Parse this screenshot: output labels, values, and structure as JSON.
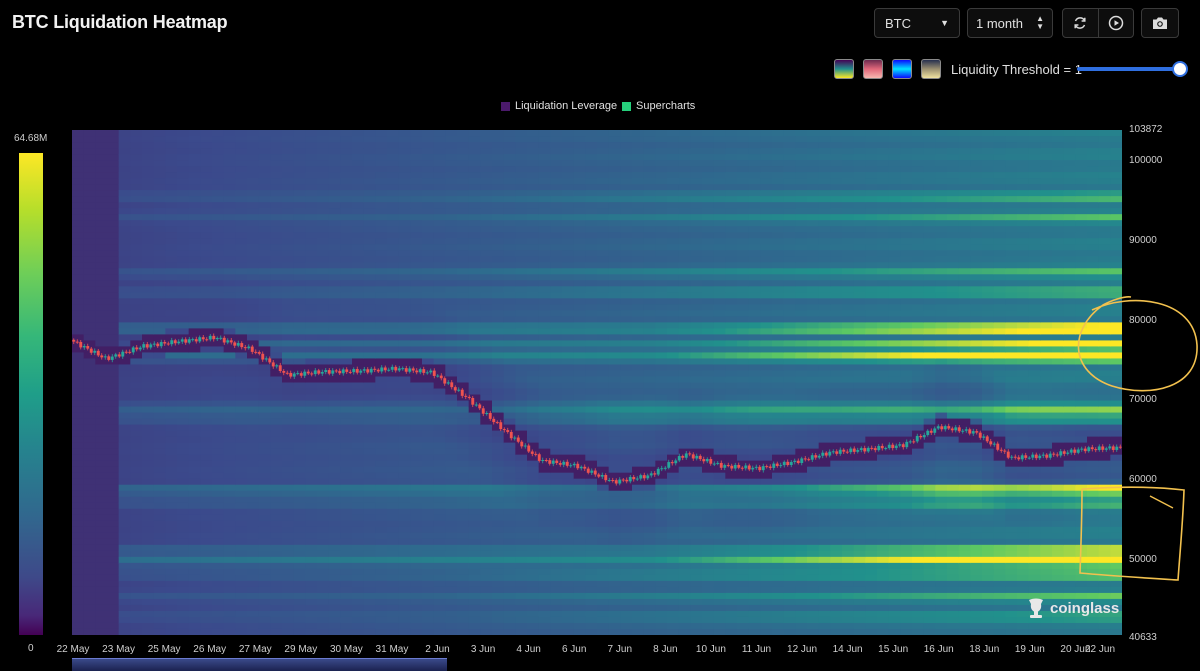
{
  "header": {
    "title": "BTC Liquidation Heatmap",
    "symbol_select": "BTC",
    "range_select": "1 month",
    "threshold_label": "Liquidity Threshold = 1"
  },
  "colors": {
    "background": "#000000",
    "heat_low": "#44125a",
    "heat_mid": "#25838e",
    "heat_high": "#fde725",
    "candle_up": "#26a69a",
    "candle_down": "#ef5350",
    "slider": "#2f6fe0",
    "annotation": "#f2c14e"
  },
  "palette_swatches": [
    [
      "#440154",
      "#21908d",
      "#fde725"
    ],
    [
      "#6b2a4e",
      "#e0677a",
      "#f7b7b0"
    ],
    [
      "#0a0aff",
      "#00e5ff",
      "#ffffff"
    ],
    [
      "#27304f",
      "#9a8f70",
      "#f0e2a0"
    ]
  ],
  "legend": {
    "items": [
      {
        "label": "Liquidation Leverage",
        "color": "#4b1a6b"
      },
      {
        "label": "Supercharts",
        "color": "#26d07c"
      }
    ]
  },
  "color_scale": {
    "max_label": "64.68M",
    "min_label": "0"
  },
  "watermark": "coinglass",
  "chart_data": {
    "type": "heatmap",
    "title": "BTC Liquidation Heatmap",
    "ylim": [
      40633,
      103872
    ],
    "y_ticks": [
      "103872",
      "100000",
      "90000",
      "80000",
      "70000",
      "60000",
      "50000",
      "40633"
    ],
    "x_ticks": [
      "22 May",
      "23 May",
      "25 May",
      "26 May",
      "27 May",
      "29 May",
      "30 May",
      "31 May",
      "2 Jun",
      "3 Jun",
      "4 Jun",
      "6 Jun",
      "7 Jun",
      "8 Jun",
      "10 Jun",
      "11 Jun",
      "12 Jun",
      "14 Jun",
      "15 Jun",
      "16 Jun",
      "18 Jun",
      "19 Jun",
      "20 Jun",
      "22 Jun"
    ],
    "value_scale": {
      "min": 0,
      "max": 64680000,
      "unit": "USD"
    },
    "price_path": [
      [
        0,
        77600
      ],
      [
        1,
        75200
      ],
      [
        2,
        76800
      ],
      [
        3,
        77400
      ],
      [
        4,
        77900
      ],
      [
        5,
        76400
      ],
      [
        6,
        73200
      ],
      [
        7,
        73600
      ],
      [
        8,
        73700
      ],
      [
        9,
        74000
      ],
      [
        10,
        73500
      ],
      [
        11,
        70200
      ],
      [
        12,
        66200
      ],
      [
        13,
        62500
      ],
      [
        14,
        61800
      ],
      [
        15,
        59800
      ],
      [
        16,
        60600
      ],
      [
        17,
        63300
      ],
      [
        18,
        61800
      ],
      [
        19,
        61500
      ],
      [
        20,
        62300
      ],
      [
        21,
        63500
      ],
      [
        22,
        63900
      ],
      [
        23,
        64400
      ],
      [
        24,
        66700
      ],
      [
        25,
        66000
      ],
      [
        26,
        62800
      ],
      [
        27,
        63100
      ],
      [
        28,
        63900
      ],
      [
        29,
        64100
      ]
    ],
    "liquidation_bands": [
      {
        "price": 79000,
        "intensity": 1.0
      },
      {
        "price": 77000,
        "intensity": 0.78
      },
      {
        "price": 75500,
        "intensity": 0.95
      },
      {
        "price": 69000,
        "intensity": 0.62
      },
      {
        "price": 67800,
        "intensity": 0.5
      },
      {
        "price": 58800,
        "intensity": 0.9
      },
      {
        "price": 57200,
        "intensity": 0.45
      },
      {
        "price": 51200,
        "intensity": 0.72
      },
      {
        "price": 49900,
        "intensity": 1.0
      },
      {
        "price": 48200,
        "intensity": 0.42
      },
      {
        "price": 95500,
        "intensity": 0.3
      },
      {
        "price": 93000,
        "intensity": 0.28
      },
      {
        "price": 86000,
        "intensity": 0.35
      },
      {
        "price": 83500,
        "intensity": 0.33
      },
      {
        "price": 45500,
        "intensity": 0.3
      },
      {
        "price": 43000,
        "intensity": 0.26
      }
    ]
  }
}
